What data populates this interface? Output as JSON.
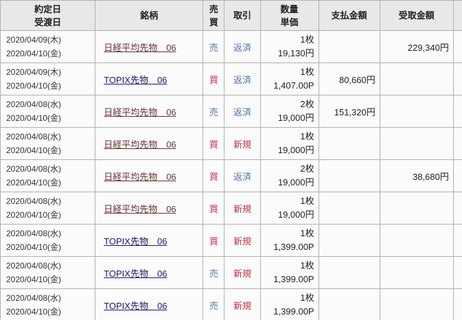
{
  "colors": {
    "header_bg": "#e8e8e8",
    "row_bg": "#fbfbfb",
    "grid_line": "#b0b0b0",
    "sell_blue": "#5577aa",
    "buy_red": "#bb3340",
    "link_nikkei": "#663333",
    "link_topix": "#1a1a66"
  },
  "table": {
    "headers": {
      "date_line1": "約定日",
      "date_line2": "受渡日",
      "symbol": "銘柄",
      "side_line1": "売",
      "side_line2": "買",
      "trade": "取引",
      "qty_line1": "数量",
      "qty_line2": "単価",
      "pay": "支払金額",
      "recv": "受取金額"
    },
    "rows": [
      {
        "date1": "2020/04/09(木)",
        "date2": "2020/04/10(金)",
        "symbol": "日経平均先物　06",
        "symbol_class": "nikkei",
        "side": "売",
        "side_class": "sell",
        "trade": "返済",
        "trade_class": "repay",
        "qty": "1枚",
        "price": "19,130円",
        "pay": "",
        "recv": "229,340円"
      },
      {
        "date1": "2020/04/09(木)",
        "date2": "2020/04/10(金)",
        "symbol": "TOPIX先物　06",
        "symbol_class": "topix",
        "side": "買",
        "side_class": "buy",
        "trade": "返済",
        "trade_class": "repay",
        "qty": "1枚",
        "price": "1,407.00P",
        "pay": "80,660円",
        "recv": ""
      },
      {
        "date1": "2020/04/08(水)",
        "date2": "2020/04/10(金)",
        "symbol": "日経平均先物　06",
        "symbol_class": "nikkei",
        "side": "売",
        "side_class": "sell",
        "trade": "返済",
        "trade_class": "repay",
        "qty": "2枚",
        "price": "19,000円",
        "pay": "151,320円",
        "recv": ""
      },
      {
        "date1": "2020/04/08(水)",
        "date2": "2020/04/10(金)",
        "symbol": "日経平均先物　06",
        "symbol_class": "nikkei",
        "side": "買",
        "side_class": "buy",
        "trade": "新規",
        "trade_class": "new",
        "qty": "1枚",
        "price": "19,000円",
        "pay": "",
        "recv": ""
      },
      {
        "date1": "2020/04/08(水)",
        "date2": "2020/04/10(金)",
        "symbol": "日経平均先物　06",
        "symbol_class": "nikkei",
        "side": "買",
        "side_class": "buy",
        "trade": "返済",
        "trade_class": "repay",
        "qty": "2枚",
        "price": "19,000円",
        "pay": "",
        "recv": "38,680円"
      },
      {
        "date1": "2020/04/08(水)",
        "date2": "2020/04/10(金)",
        "symbol": "日経平均先物　06",
        "symbol_class": "nikkei",
        "side": "買",
        "side_class": "buy",
        "trade": "新規",
        "trade_class": "new",
        "qty": "1枚",
        "price": "19,000円",
        "pay": "",
        "recv": ""
      },
      {
        "date1": "2020/04/08(水)",
        "date2": "2020/04/10(金)",
        "symbol": "TOPIX先物　06",
        "symbol_class": "topix",
        "side": "買",
        "side_class": "buy",
        "trade": "新規",
        "trade_class": "new",
        "qty": "1枚",
        "price": "1,399.00P",
        "pay": "",
        "recv": ""
      },
      {
        "date1": "2020/04/08(水)",
        "date2": "2020/04/10(金)",
        "symbol": "TOPIX先物　06",
        "symbol_class": "topix",
        "side": "売",
        "side_class": "sell",
        "trade": "新規",
        "trade_class": "new",
        "qty": "1枚",
        "price": "1,399.00P",
        "pay": "",
        "recv": ""
      },
      {
        "date1": "2020/04/08(水)",
        "date2": "2020/04/10(金)",
        "symbol": "TOPIX先物　06",
        "symbol_class": "topix",
        "side": "売",
        "side_class": "sell",
        "trade": "新規",
        "trade_class": "new",
        "qty": "1枚",
        "price": "1,399.00P",
        "pay": "",
        "recv": ""
      }
    ]
  }
}
